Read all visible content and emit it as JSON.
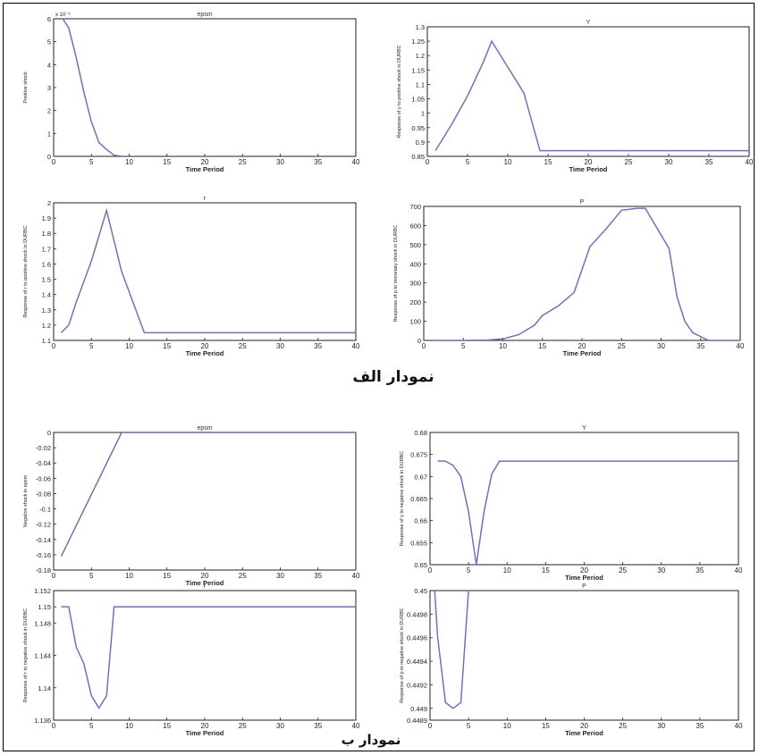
{
  "captions": {
    "a": "نمودار الف",
    "b": "نمودار ب"
  },
  "colors": {
    "line": "#6f72b4",
    "axis": "#222222"
  },
  "chart_data": [
    {
      "type": "line",
      "group": "a",
      "title": "epsm",
      "xlabel": "Time Period",
      "ylabel": "Positive shock",
      "multiplier": "x 10⁻³",
      "xlim": [
        0,
        40
      ],
      "ylim": [
        0,
        6
      ],
      "xticks": [
        0,
        5,
        10,
        15,
        20,
        25,
        30,
        35,
        40
      ],
      "yticks": [
        0,
        1,
        2,
        3,
        4,
        5,
        6
      ],
      "yticklabels": [
        "0",
        "1",
        "2",
        "3",
        "4",
        "5",
        "6"
      ],
      "series": [
        {
          "x": [
            1,
            2,
            3,
            4,
            5,
            6,
            7,
            8,
            9,
            10
          ],
          "values": [
            6.1,
            5.6,
            4.3,
            2.8,
            1.5,
            0.6,
            0.3,
            0.05,
            0.0,
            0.0
          ]
        }
      ]
    },
    {
      "type": "line",
      "group": "a",
      "title": "Y",
      "xlabel": "Time Period",
      "ylabel": "Response of y to positive shock in DURBC",
      "xlim": [
        0,
        40
      ],
      "ylim": [
        0.85,
        1.3
      ],
      "xticks": [
        0,
        5,
        10,
        15,
        20,
        25,
        30,
        35,
        40
      ],
      "yticks": [
        0.85,
        0.9,
        0.95,
        1.0,
        1.05,
        1.1,
        1.15,
        1.2,
        1.25,
        1.3
      ],
      "yticklabels": [
        "0.85",
        "0.9",
        "0.95",
        "1",
        "1.05",
        "1.1",
        "1.15",
        "1.2",
        "1.25",
        "1.3"
      ],
      "series": [
        {
          "x": [
            1,
            3,
            5,
            7,
            8,
            10,
            12,
            14,
            40
          ],
          "values": [
            0.87,
            0.96,
            1.06,
            1.18,
            1.25,
            1.16,
            1.07,
            0.87,
            0.87
          ]
        }
      ]
    },
    {
      "type": "line",
      "group": "a",
      "title": "r",
      "xlabel": "Time Period",
      "ylabel": "Response of r to positive shock in DURBC",
      "xlim": [
        0,
        40
      ],
      "ylim": [
        1.1,
        2.0
      ],
      "xticks": [
        0,
        5,
        10,
        15,
        20,
        25,
        30,
        35,
        40
      ],
      "yticks": [
        1.1,
        1.2,
        1.3,
        1.4,
        1.5,
        1.6,
        1.7,
        1.8,
        1.9,
        2.0
      ],
      "yticklabels": [
        "1.1",
        "1.2",
        "1.3",
        "1.4",
        "1.5",
        "1.6",
        "1.7",
        "1.8",
        "1.9",
        "2"
      ],
      "series": [
        {
          "x": [
            1,
            2,
            3,
            5,
            7,
            9,
            12,
            40
          ],
          "values": [
            1.15,
            1.2,
            1.35,
            1.62,
            1.95,
            1.55,
            1.15,
            1.15
          ]
        }
      ]
    },
    {
      "type": "line",
      "group": "a",
      "title": "P",
      "xlabel": "Time Period",
      "ylabel": "Response of p to monetary shock in DURBC",
      "xlim": [
        0,
        40
      ],
      "ylim": [
        0,
        700
      ],
      "xticks": [
        0,
        5,
        10,
        15,
        20,
        25,
        30,
        35,
        40
      ],
      "yticks": [
        0,
        100,
        200,
        300,
        400,
        500,
        600,
        700
      ],
      "yticklabels": [
        "0",
        "100",
        "200",
        "300",
        "400",
        "500",
        "600",
        "700"
      ],
      "series": [
        {
          "x": [
            1,
            5,
            8,
            10,
            12,
            14,
            15,
            17,
            19,
            20,
            21,
            23,
            25,
            27,
            28,
            31,
            32,
            33,
            34,
            36,
            40
          ],
          "values": [
            0,
            0,
            2,
            8,
            30,
            80,
            130,
            180,
            250,
            370,
            490,
            580,
            680,
            690,
            690,
            480,
            230,
            100,
            40,
            0,
            0
          ]
        }
      ]
    },
    {
      "type": "line",
      "group": "b",
      "title": "epsm",
      "xlabel": "Time Period",
      "ylabel": "Negative shock in epsm",
      "xlim": [
        0,
        40
      ],
      "ylim": [
        -0.18,
        0
      ],
      "xticks": [
        0,
        5,
        10,
        15,
        20,
        25,
        30,
        35,
        40
      ],
      "yticks": [
        -0.18,
        -0.16,
        -0.14,
        -0.12,
        -0.1,
        -0.08,
        -0.06,
        -0.04,
        -0.02,
        0
      ],
      "yticklabels": [
        "-0.18",
        "-0.16",
        "-0.14",
        "-0.12",
        "-0.1",
        "-0.08",
        "-0.06",
        "-0.04",
        "-0.02",
        "0"
      ],
      "series": [
        {
          "x": [
            1,
            9,
            10,
            40
          ],
          "values": [
            -0.162,
            0,
            0,
            0
          ]
        }
      ]
    },
    {
      "type": "line",
      "group": "b",
      "title": "Y",
      "xlabel": "Time Period",
      "ylabel": "Response of y to negative shock in DURBC",
      "xlim": [
        0,
        40
      ],
      "ylim": [
        0.65,
        0.68
      ],
      "xticks": [
        0,
        5,
        10,
        15,
        20,
        25,
        30,
        35,
        40
      ],
      "yticks": [
        0.65,
        0.655,
        0.66,
        0.665,
        0.67,
        0.675,
        0.68
      ],
      "yticklabels": [
        "0.65",
        "0.655",
        "0.66",
        "0.665",
        "0.67",
        "0.675",
        "0.68"
      ],
      "series": [
        {
          "x": [
            1,
            2,
            3,
            4,
            5,
            6,
            7,
            8,
            9,
            40
          ],
          "values": [
            0.6735,
            0.6735,
            0.6725,
            0.67,
            0.662,
            0.65,
            0.662,
            0.6705,
            0.6735,
            0.6735
          ]
        }
      ]
    },
    {
      "type": "line",
      "group": "b",
      "title": "r",
      "xlabel": "Time Period",
      "ylabel": "Response of r to negative shock in DURBC",
      "xlim": [
        0,
        40
      ],
      "ylim": [
        1.136,
        1.152
      ],
      "xticks": [
        0,
        5,
        10,
        15,
        20,
        25,
        30,
        35,
        40
      ],
      "yticks": [
        1.136,
        1.14,
        1.144,
        1.148,
        1.15,
        1.152
      ],
      "yticklabels": [
        "1.136",
        "1.14",
        "1.144",
        "1.148",
        "1.15",
        "1.152"
      ],
      "series": [
        {
          "x": [
            1,
            2,
            3,
            4,
            5,
            6,
            7,
            8,
            40
          ],
          "values": [
            1.15,
            1.15,
            1.145,
            1.143,
            1.139,
            1.1375,
            1.139,
            1.15,
            1.15
          ]
        }
      ]
    },
    {
      "type": "line",
      "group": "b",
      "title": "P",
      "xlabel": "Time Period",
      "ylabel": "Response of p to negative shock in DURBC",
      "xlim": [
        0,
        40
      ],
      "ylim": [
        0.4489,
        0.45
      ],
      "xticks": [
        0,
        5,
        10,
        15,
        20,
        25,
        30,
        35,
        40
      ],
      "yticks": [
        0.4489,
        0.449,
        0.4492,
        0.4494,
        0.4496,
        0.4498,
        0.45
      ],
      "yticklabels": [
        "0.4489",
        "0.449",
        "0.4492",
        "0.4494",
        "0.4496",
        "0.4498",
        "0.45"
      ],
      "series": [
        {
          "x": [
            0.6,
            1,
            2,
            3,
            4,
            5
          ],
          "values": [
            0.45,
            0.4496,
            0.44905,
            0.449,
            0.44905,
            0.45
          ]
        }
      ]
    }
  ]
}
